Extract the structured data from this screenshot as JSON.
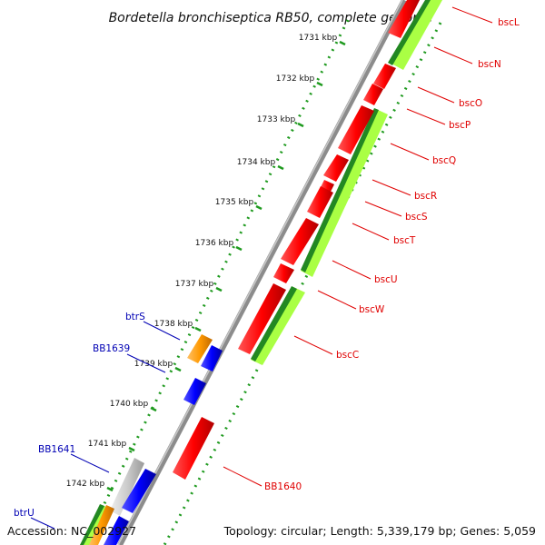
{
  "title": "Bordetella bronchiseptica RB50, complete genome",
  "accession_text": "Accession: NC_002927",
  "summary_text": "Topology: circular; Length: 5,339,179 bp; Genes: 5,059",
  "colors": {
    "backbone": "#8c8c8c",
    "cds_forward": "#ff0000",
    "cds_reverse": "#0000ff",
    "rna": "#ff9900",
    "cog_light": "#aaff44",
    "cog_dark": "#228822",
    "gray_feature": "#cccccc",
    "tick_green": "#1f9a1f",
    "label_red": "#e00000",
    "label_blue": "#0000b4"
  },
  "kbp_labels": [
    "1731 kbp",
    "1732 kbp",
    "1733 kbp",
    "1734 kbp",
    "1735 kbp",
    "1736 kbp",
    "1737 kbp",
    "1738 kbp",
    "1739 kbp",
    "1740 kbp",
    "1741 kbp",
    "1742 kbp"
  ],
  "right_gene_labels": [
    "bscL",
    "bscN",
    "bscO",
    "bscP",
    "bscQ",
    "bscR",
    "bscS",
    "bscT",
    "bscU",
    "bscW",
    "bscC",
    "BB1640"
  ],
  "left_gene_labels": [
    "btrS",
    "BB1639",
    "BB1641",
    "btrU"
  ]
}
